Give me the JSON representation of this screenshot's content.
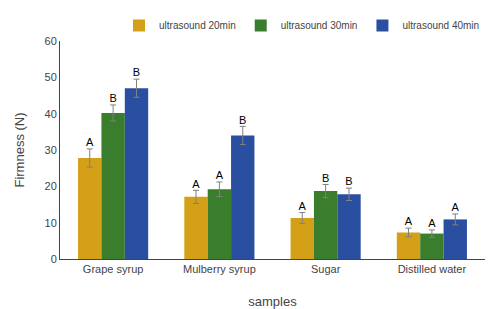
{
  "chart_data": {
    "type": "bar",
    "categories": [
      "Grape syrup",
      "Mulberry syrup",
      "Sugar",
      "Distilled water"
    ],
    "series": [
      {
        "name": "ultrasound 20min",
        "color": "#D4A017",
        "values": [
          27.8,
          17.1,
          11.3,
          7.3
        ],
        "errors": [
          2.5,
          1.8,
          1.5,
          1.2
        ],
        "letters": [
          "A",
          "A",
          "A",
          "A"
        ]
      },
      {
        "name": "ultrasound 30min",
        "color": "#3A7D2C",
        "values": [
          40.2,
          19.2,
          18.7,
          7.0
        ],
        "errors": [
          2.2,
          2.0,
          1.8,
          1.0
        ],
        "letters": [
          "B",
          "A",
          "B",
          "A"
        ]
      },
      {
        "name": "ultrasound 40min",
        "color": "#2B4FA0",
        "values": [
          47.0,
          34.0,
          17.8,
          10.9
        ],
        "errors": [
          2.5,
          2.5,
          1.7,
          1.5
        ],
        "letters": [
          "B",
          "B",
          "B",
          "A"
        ]
      }
    ],
    "xlabel": "samples",
    "ylabel": "Firmness (N)",
    "ylim": [
      0,
      60
    ],
    "yticks": [
      0,
      10,
      20,
      30,
      40,
      50,
      60
    ],
    "grid": false,
    "legend": "upper right"
  }
}
